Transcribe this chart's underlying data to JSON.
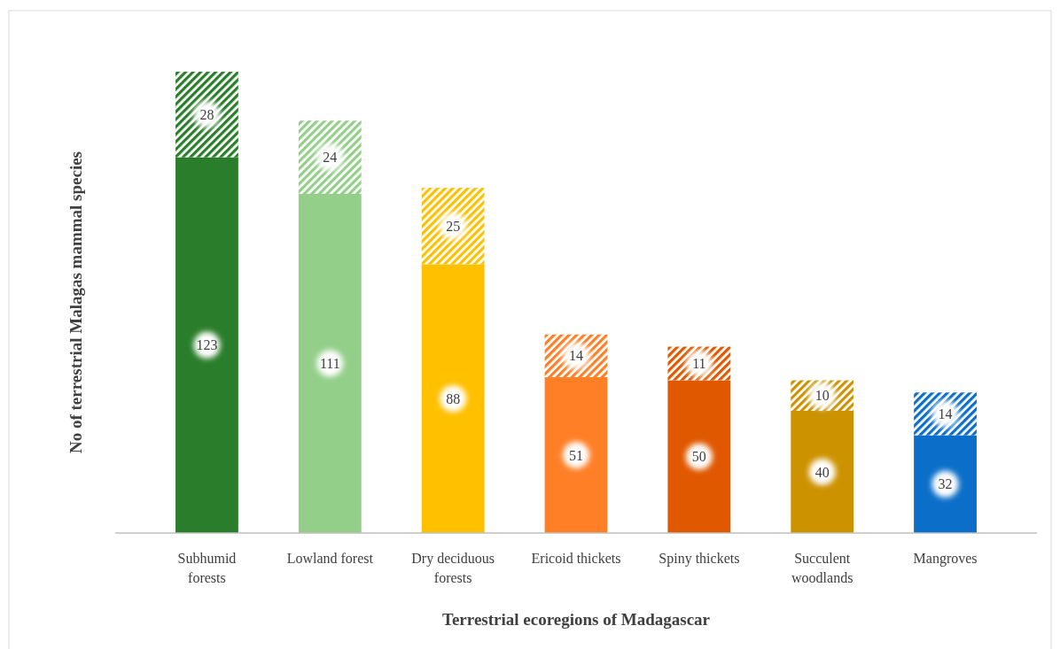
{
  "chart_data": {
    "type": "bar",
    "stacked": true,
    "xlabel": "Terrestrial ecoregions of Madagascar",
    "ylabel": "No of terrestrial Malagas mammal  species",
    "categories": [
      "Subhumid forests",
      "Lowland forest",
      "Dry deciduous forests",
      "Ericoid thickets",
      "Spiny thickets",
      "Succulent woodlands",
      "Mangroves"
    ],
    "series": [
      {
        "values": [
          123,
          111,
          88,
          51,
          50,
          40,
          32
        ],
        "colors": [
          "#2a7d2a",
          "#93cf88",
          "#ffc000",
          "#ff7f27",
          "#e05800",
          "#cc9200",
          "#0b6fc9"
        ]
      },
      {
        "values": [
          28,
          24,
          25,
          14,
          11,
          10,
          14
        ],
        "colors": [
          "#2a7d2a",
          "#93cf88",
          "#ffc000",
          "#ff7f27",
          "#e05800",
          "#cc9200",
          "#0b6fc9"
        ]
      }
    ],
    "data_labels": true,
    "tick_labels": "x"
  }
}
